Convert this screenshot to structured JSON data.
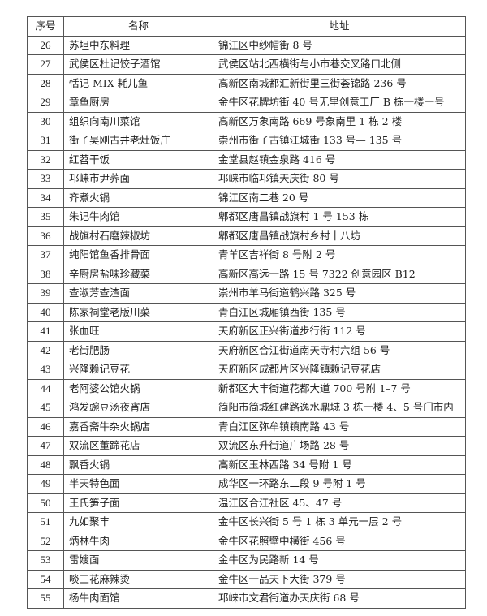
{
  "table": {
    "headers": [
      "序号",
      "名称",
      "地址"
    ],
    "rows": [
      {
        "no": "26",
        "name": "苏坦中东料理",
        "address": "锦江区中纱帽街 8 号"
      },
      {
        "no": "27",
        "name": "武侯区杜记饺子酒馆",
        "address": "武侯区站北西横街与小市巷交叉路口北侧"
      },
      {
        "no": "28",
        "name": "恬记 MIX 耗儿鱼",
        "address": "高新区南城都汇新街里三街荟锦路 236 号"
      },
      {
        "no": "29",
        "name": "章鱼厨房",
        "address": "金牛区花牌坊街 40 号无里创意工厂 B 栋一楼一号"
      },
      {
        "no": "30",
        "name": "组织向南川菜馆",
        "address": "高新区万象南路 669 号象南里 1 栋 2 楼"
      },
      {
        "no": "31",
        "name": "街子吴刚古井老灶饭庄",
        "address": "崇州市街子古镇江城街 133 号— 135 号"
      },
      {
        "no": "32",
        "name": " 红苕干饭",
        "address": "金堂县赵镇金泉路 416 号"
      },
      {
        "no": "33",
        "name": "邛崃市尹荞面",
        "address": "邛崃市临邛镇天庆街 80 号"
      },
      {
        "no": "34",
        "name": "齐煮火锅",
        "address": "锦江区南二巷 20 号"
      },
      {
        "no": "35",
        "name": "朱记牛肉馆",
        "address": "郫都区唐昌镇战旗村 1 号 153 栋"
      },
      {
        "no": "36",
        "name": "战旗村石磨辣椒坊",
        "address": "郫都区唐昌镇战旗村乡村十八坊"
      },
      {
        "no": "37",
        "name": "纯阳馆鱼香排骨面",
        "address": "青羊区吉祥街 8 号附 2 号"
      },
      {
        "no": "38",
        "name": "辛厨房盐味珍藏菜",
        "address": "高新区高远一路 15 号 7322 创意园区 B12"
      },
      {
        "no": "39",
        "name": "查淑芳查渣面",
        "address": "崇州市羊马街道鹤兴路 325 号"
      },
      {
        "no": "40",
        "name": "陈家祠堂老版川菜",
        "address": "青白江区城厢镇西街 135 号"
      },
      {
        "no": "41",
        "name": "张血旺",
        "address": "天府新区正兴街道步行街 112 号"
      },
      {
        "no": "42",
        "name": "老街肥肠",
        "address": "天府新区合江街道南天寺村六组 56 号"
      },
      {
        "no": "43",
        "name": "兴隆赖记豆花",
        "address": "天府新区成都片区兴隆镇赖记豆花店"
      },
      {
        "no": "44",
        "name": "老阿婆公馆火锅",
        "address": "新都区大丰街道花都大道 700 号附 1–7 号"
      },
      {
        "no": "45",
        "name": "鸿发豌豆汤夜宵店",
        "address": "简阳市简城红建路逸水鼎城 3 栋一楼 4、5 号门市内"
      },
      {
        "no": "46",
        "name": "嘉香斋牛杂火锅店",
        "address": "青白江区弥牟镇镇南路 43 号"
      },
      {
        "no": "47",
        "name": "双流区董蹄花店",
        "address": "双流区东升街道广场路 28 号"
      },
      {
        "no": "48",
        "name": "飘香火锅",
        "address": "高新区玉林西路 34 号附 1 号"
      },
      {
        "no": "49",
        "name": "半天特色面",
        "address": "成华区一环路东二段 9 号附 1 号"
      },
      {
        "no": "50",
        "name": "王氏笋子面",
        "address": "温江区合江社区 45、47 号"
      },
      {
        "no": "51",
        "name": "九如聚丰",
        "address": "金牛区长兴街 5 号 1 栋 3 单元一层 2 号"
      },
      {
        "no": "52",
        "name": "炳林牛肉",
        "address": "金牛区花照壁中横街 456 号"
      },
      {
        "no": "53",
        "name": "雷嫂面",
        "address": "金牛区为民路新 14 号"
      },
      {
        "no": "54",
        "name": "啖三花麻辣烫",
        "address": "金牛区一品天下大街 379 号"
      },
      {
        "no": "55",
        "name": "杨牛肉面馆",
        "address": "邛崃市文君街道办天庆街 68 号"
      }
    ]
  }
}
